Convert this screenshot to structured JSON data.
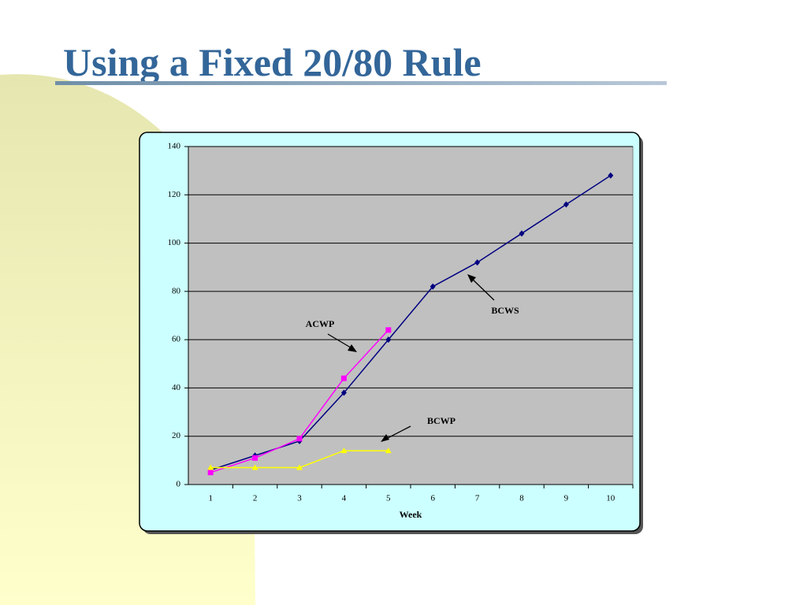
{
  "chart_data": {
    "type": "line",
    "title": "Using a Fixed 20/80 Rule",
    "x_label": "Week",
    "categories": [
      1,
      2,
      3,
      4,
      5,
      6,
      7,
      8,
      9,
      10
    ],
    "series": [
      {
        "name": "BCWS",
        "color": "#000080",
        "marker": "diamond",
        "values": [
          6,
          12,
          18,
          38,
          60,
          82,
          92,
          104,
          116,
          128
        ]
      },
      {
        "name": "ACWP",
        "color": "#ff00ff",
        "marker": "square",
        "values": [
          5,
          11,
          19,
          44,
          64,
          null,
          null,
          null,
          null,
          null
        ]
      },
      {
        "name": "BCWP",
        "color": "#ffff00",
        "marker": "triangle",
        "values": [
          7,
          7,
          7,
          14,
          14,
          null,
          null,
          null,
          null,
          null
        ]
      }
    ],
    "annotations": [
      "ACWP",
      "BCWS",
      "BCWP"
    ],
    "ylim": [
      0,
      140
    ],
    "yticks": [
      0,
      20,
      40,
      60,
      80,
      100,
      120,
      140
    ],
    "grid": true
  }
}
